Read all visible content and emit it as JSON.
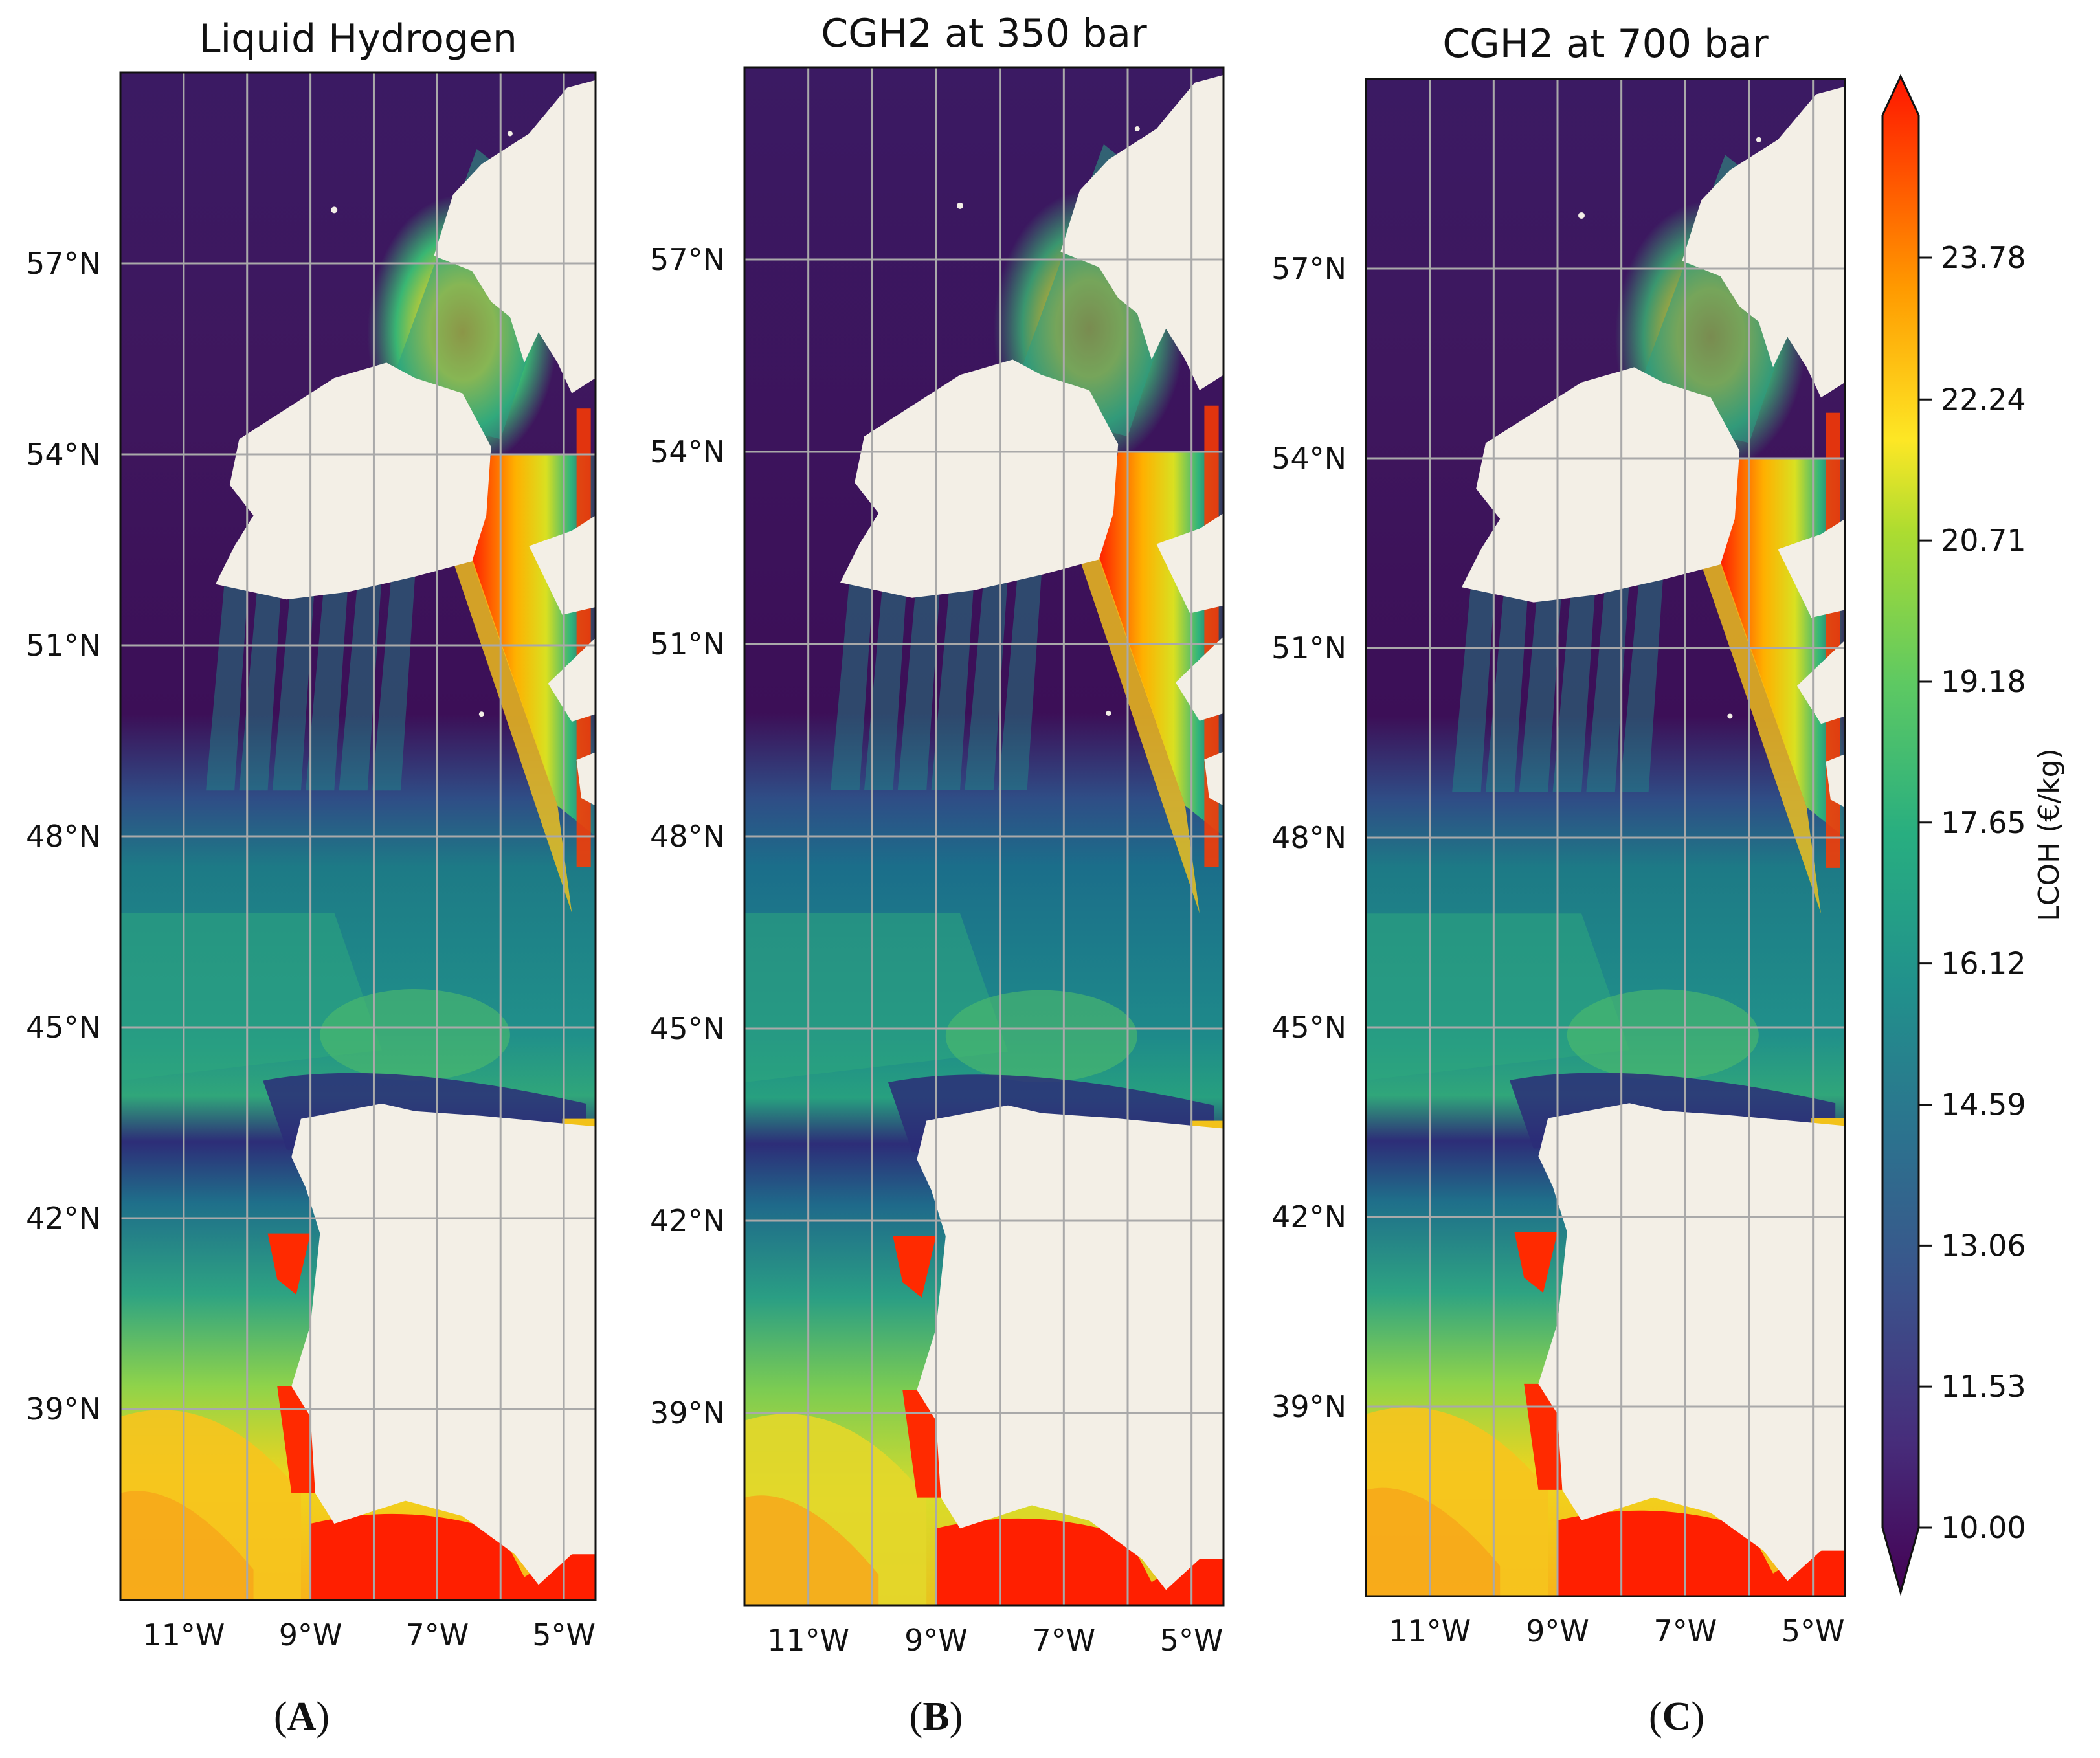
{
  "figure": {
    "panels": [
      {
        "id": "A",
        "title": "Liquid Hydrogen",
        "letter": "A"
      },
      {
        "id": "B",
        "title": "CGH2 at 350 bar",
        "letter": "B"
      },
      {
        "id": "C",
        "title": "CGH2 at 700 bar",
        "letter": "C"
      }
    ],
    "longitude_ticks": [
      "11°W",
      "9°W",
      "7°W",
      "5°W"
    ],
    "latitude_ticks": [
      "57°N",
      "54°N",
      "51°N",
      "48°N",
      "45°N",
      "42°N",
      "39°N"
    ],
    "map_extent": {
      "lon_min": -12.0,
      "lon_max": -4.5,
      "lat_min": 36.0,
      "lat_max": 60.0
    },
    "colorbar": {
      "label": "LCOH (€/kg)",
      "ticks": [
        "23.78",
        "22.24",
        "20.71",
        "19.18",
        "17.65",
        "16.12",
        "14.59",
        "13.06",
        "11.53",
        "10.00"
      ],
      "min": 10.0,
      "max": 23.78,
      "colormap": "viridis→red",
      "extend": "both"
    },
    "colors": {
      "deep": "#40125c",
      "teal": "#1f8a84",
      "green": "#3fbf6a",
      "yellow": "#f2df1a",
      "orange": "#ff8c00",
      "red": "#ff1a00",
      "land": "#f3efe6",
      "grid": "#a9a9a9"
    }
  }
}
